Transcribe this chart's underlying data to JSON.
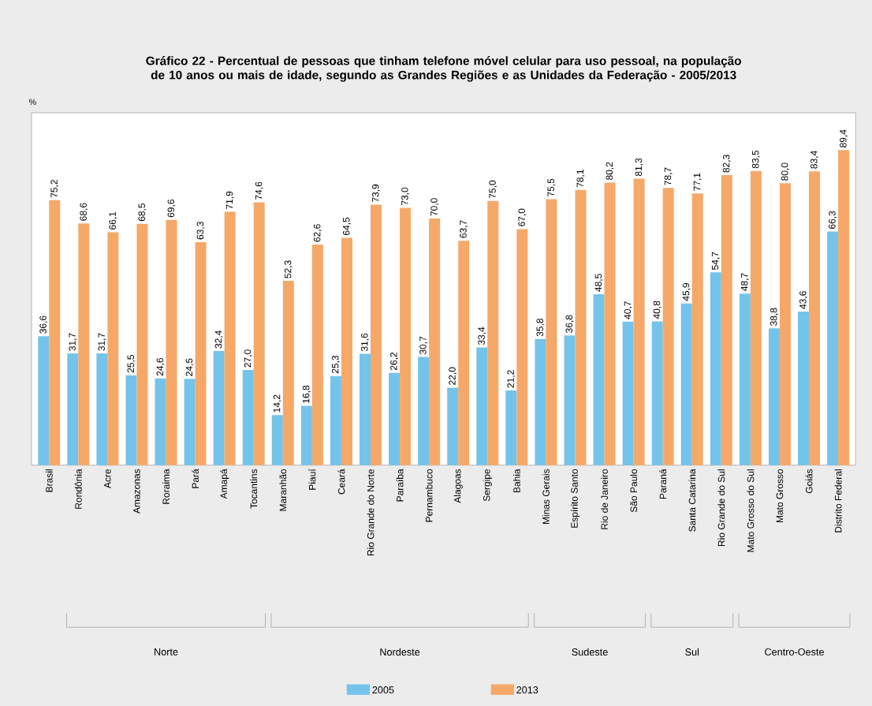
{
  "chart_data": {
    "type": "bar",
    "title": "Gráfico 22 - Percentual de pessoas que tinham telefone móvel celular para uso pessoal, na população de 10 anos ou mais de idade, segundo as Grandes Regiões e as Unidades da Federação - 2005/2013",
    "ylabel": "%",
    "categories": [
      "Brasil",
      "Rondônia",
      "Acre",
      "Amazonas",
      "Roraima",
      "Pará",
      "Amapá",
      "Tocantins",
      "Maranhão",
      "Piauí",
      "Ceará",
      "Rio Grande do Norte",
      "Paraíba",
      "Pernambuco",
      "Alagoas",
      "Sergipe",
      "Bahia",
      "Minas Gerais",
      "Espírito Santo",
      "Rio de Janeiro",
      "São Paulo",
      "Paraná",
      "Santa Catarina",
      "Rio Grande do Sul",
      "Mato Grosso do Sul",
      "Mato Grosso",
      "Goiás",
      "Distrito Federal"
    ],
    "series": [
      {
        "name": "2005",
        "color": "#74c3ea",
        "values": [
          36.6,
          31.7,
          31.7,
          25.5,
          24.6,
          24.5,
          32.4,
          27.0,
          14.2,
          16.8,
          25.3,
          31.6,
          26.2,
          30.7,
          22.0,
          33.4,
          21.2,
          35.8,
          36.8,
          48.5,
          40.7,
          40.8,
          45.9,
          54.7,
          48.7,
          38.8,
          43.6,
          66.3
        ],
        "value_labels": [
          "36,6",
          "31,7",
          "31,7",
          "25,5",
          "24,6",
          "24,5",
          "32,4",
          "27,0",
          "14,2",
          "16,8",
          "25,3",
          "31,6",
          "26,2",
          "30,7",
          "22,0",
          "33,4",
          "21,2",
          "35,8",
          "36,8",
          "48,5",
          "40,7",
          "40,8",
          "45,9",
          "54,7",
          "48,7",
          "38,8",
          "43,6",
          "66,3"
        ]
      },
      {
        "name": "2013",
        "color": "#f5a868",
        "values": [
          75.2,
          68.6,
          66.1,
          68.5,
          69.6,
          63.3,
          71.9,
          74.6,
          52.3,
          62.6,
          64.5,
          73.9,
          73.0,
          70.0,
          63.7,
          75.0,
          67.0,
          75.5,
          78.1,
          80.2,
          81.3,
          78.7,
          77.1,
          82.3,
          83.5,
          80.0,
          83.4,
          89.4
        ],
        "value_labels": [
          "75,2",
          "68,6",
          "66,1",
          "68,5",
          "69,6",
          "63,3",
          "71,9",
          "74,6",
          "52,3",
          "62,6",
          "64,5",
          "73,9",
          "73,0",
          "70,0",
          "63,7",
          "75,0",
          "67,0",
          "75,5",
          "78,1",
          "80,2",
          "81,3",
          "78,7",
          "77,1",
          "82,3",
          "83,5",
          "80,0",
          "83,4",
          "89,4"
        ]
      }
    ],
    "ylim": [
      0,
      100
    ],
    "legend": "bottom",
    "annotations": [
      "Norte",
      "Nordeste",
      "Sudeste",
      "Sul",
      "Centro-Oeste"
    ]
  }
}
